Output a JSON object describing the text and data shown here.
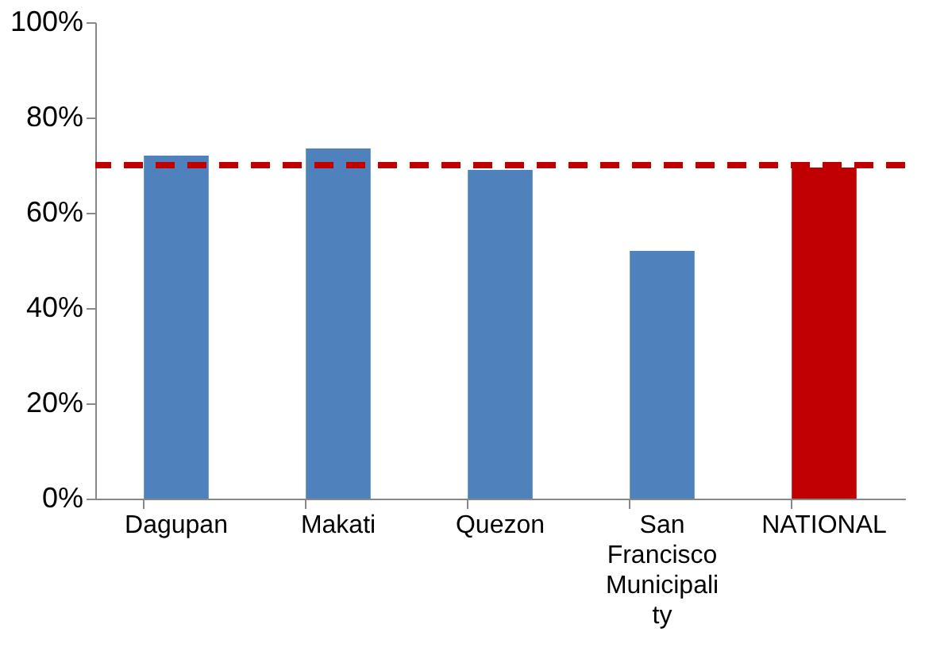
{
  "chart_data": {
    "type": "bar",
    "categories": [
      "Dagupan",
      "Makati",
      "Quezon",
      "San Francisco Municipality",
      "NATIONAL"
    ],
    "values": [
      72,
      73.5,
      69,
      52,
      69.5
    ],
    "colors": [
      "#4f81bd",
      "#4f81bd",
      "#4f81bd",
      "#4f81bd",
      "#c00000"
    ],
    "ylim": [
      0,
      100
    ],
    "yticks": [
      {
        "value": 0,
        "label": "0%"
      },
      {
        "value": 20,
        "label": "20%"
      },
      {
        "value": 40,
        "label": "40%"
      },
      {
        "value": 60,
        "label": "60%"
      },
      {
        "value": 80,
        "label": "80%"
      },
      {
        "value": 100,
        "label": "100%"
      }
    ],
    "ref_lines": [
      {
        "axis": "y",
        "value": 70,
        "color": "#c00000",
        "line_style": "dashed"
      }
    ],
    "grid": false
  }
}
